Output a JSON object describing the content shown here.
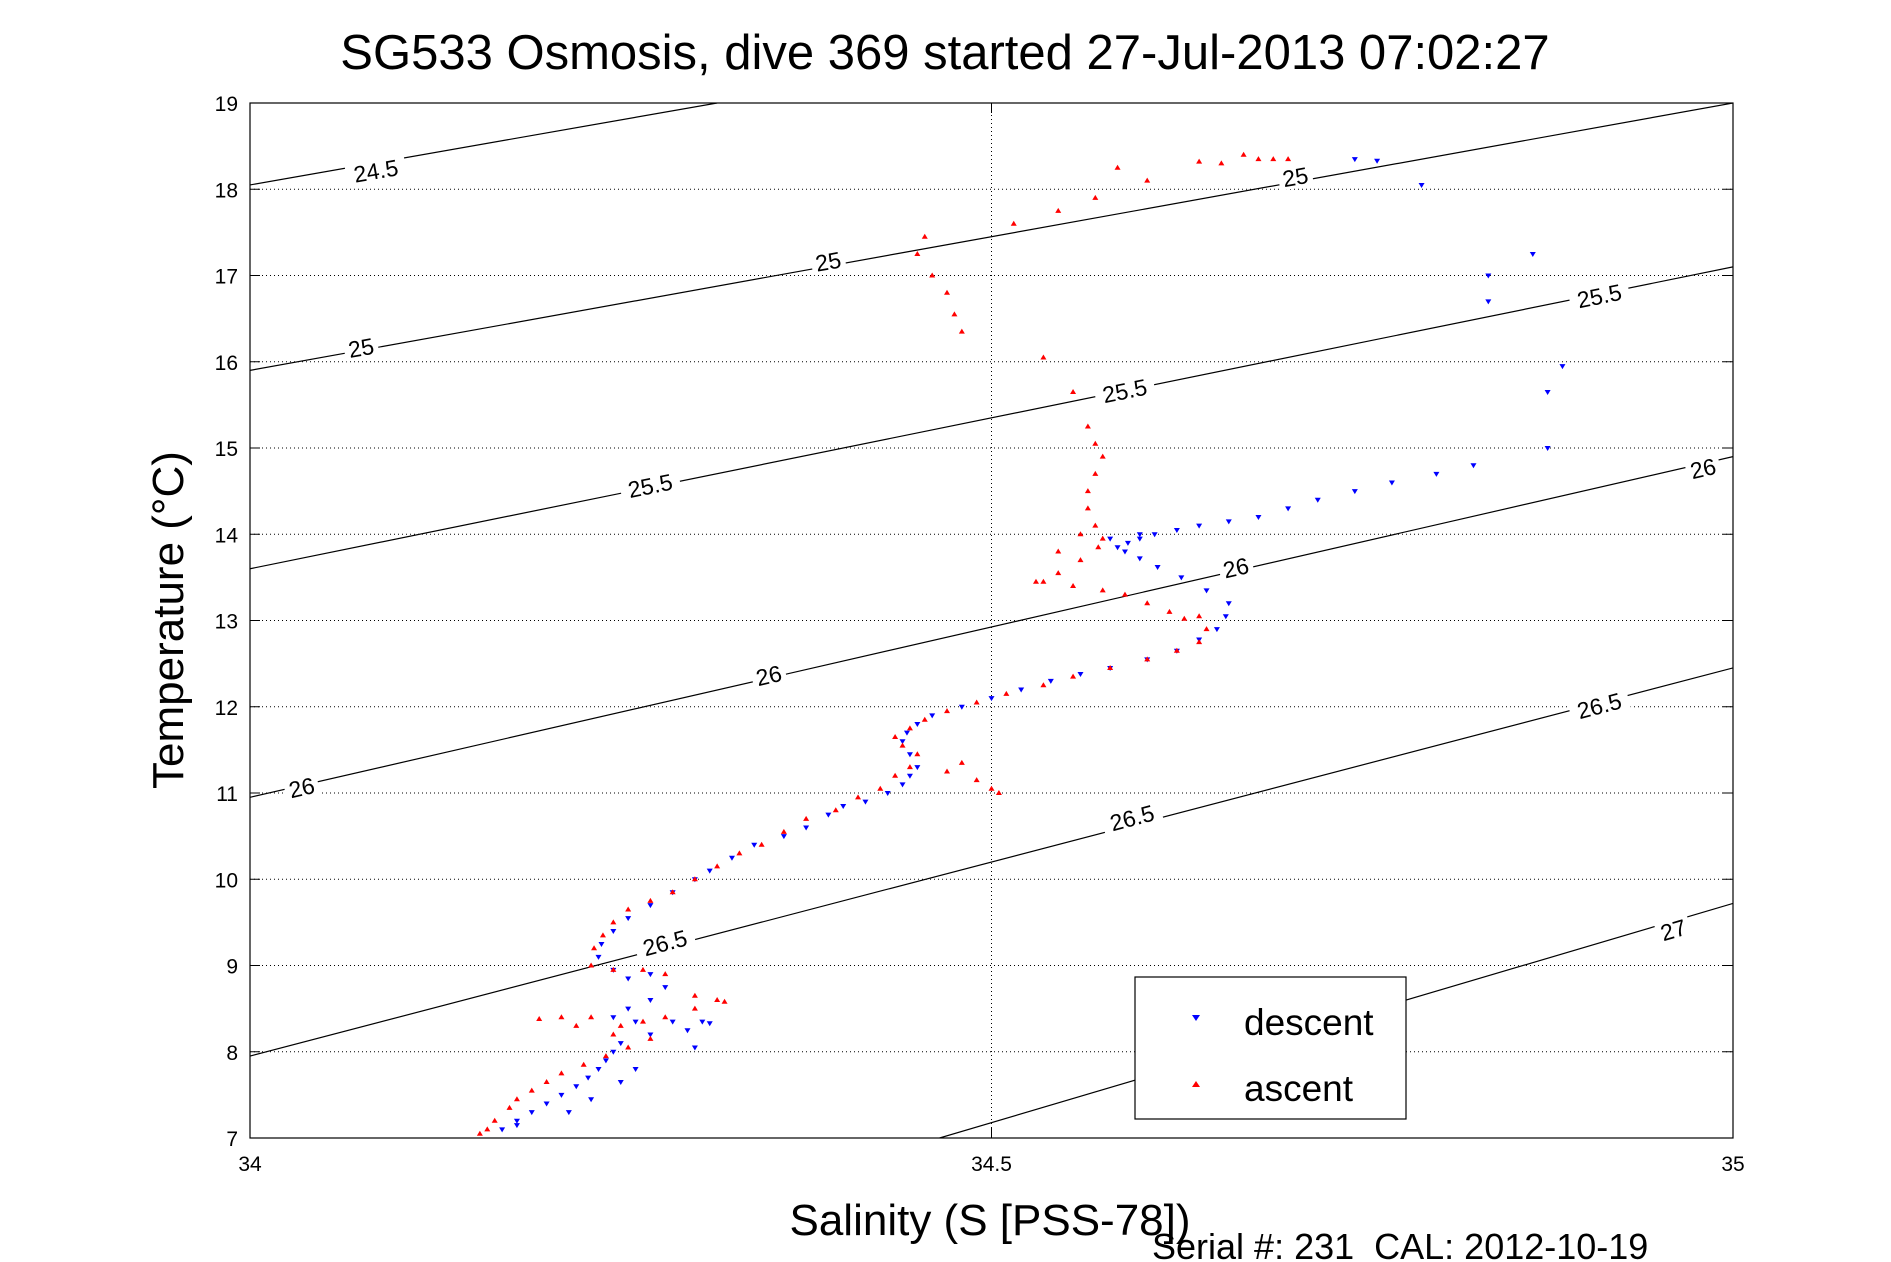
{
  "chart_data": {
    "type": "scatter",
    "title": "SG533 Osmosis, dive 369 started 27-Jul-2013 07:02:27",
    "xlabel": "Salinity (S [PSS-78])",
    "ylabel": "Temperature (°C)",
    "xlim": [
      34,
      35
    ],
    "ylim": [
      7,
      19
    ],
    "xticks": [
      34,
      34.5,
      35
    ],
    "yticks": [
      7,
      8,
      9,
      10,
      11,
      12,
      13,
      14,
      15,
      16,
      17,
      18,
      19
    ],
    "xtick_labels": [
      "34",
      "34.5",
      "35"
    ],
    "ytick_labels": [
      "7",
      "8",
      "9",
      "10",
      "11",
      "12",
      "13",
      "14",
      "15",
      "16",
      "17",
      "18",
      "19"
    ],
    "grid": "dotted at ticks",
    "legend_position": "bottom-right",
    "footer": "Serial #: 231  CAL: 2012-10-19",
    "density_contours": [
      {
        "level": "24.5",
        "points": [
          [
            34.0,
            18.05
          ],
          [
            34.315,
            19.0
          ]
        ],
        "labels": [
          {
            "text": "24.5",
            "at": [
              34.085,
              18.2
            ]
          }
        ]
      },
      {
        "level": "25",
        "points": [
          [
            34.0,
            15.9
          ],
          [
            35.0,
            19.0
          ]
        ],
        "labels": [
          {
            "text": "25",
            "at": [
              34.075,
              16.15
            ]
          },
          {
            "text": "25",
            "at": [
              34.39,
              17.15
            ]
          },
          {
            "text": "25",
            "at": [
              34.705,
              18.13
            ]
          }
        ]
      },
      {
        "level": "25.5",
        "points": [
          [
            34.0,
            13.6
          ],
          [
            35.0,
            17.1
          ]
        ],
        "labels": [
          {
            "text": "25.5",
            "at": [
              34.27,
              14.55
            ]
          },
          {
            "text": "25.5",
            "at": [
              34.59,
              15.65
            ]
          },
          {
            "text": "25.5",
            "at": [
              34.91,
              16.75
            ]
          }
        ]
      },
      {
        "level": "26",
        "points": [
          [
            34.0,
            10.95
          ],
          [
            35.0,
            14.9
          ]
        ],
        "labels": [
          {
            "text": "26",
            "at": [
              34.035,
              11.05
            ]
          },
          {
            "text": "26",
            "at": [
              34.35,
              12.35
            ]
          },
          {
            "text": "26",
            "at": [
              34.665,
              13.6
            ]
          },
          {
            "text": "26",
            "at": [
              34.98,
              14.75
            ]
          }
        ]
      },
      {
        "level": "26.5",
        "points": [
          [
            34.0,
            7.95
          ],
          [
            35.0,
            12.45
          ]
        ],
        "labels": [
          {
            "text": "26.5",
            "at": [
              34.28,
              9.25
            ]
          },
          {
            "text": "26.5",
            "at": [
              34.595,
              10.7
            ]
          },
          {
            "text": "26.5",
            "at": [
              34.91,
              12.0
            ]
          }
        ]
      },
      {
        "level": "27",
        "points": [
          [
            34.465,
            7.0
          ],
          [
            35.0,
            9.72
          ]
        ],
        "labels": [
          {
            "text": "27",
            "at": [
              34.96,
              9.4
            ]
          }
        ]
      }
    ],
    "series": [
      {
        "name": "descent",
        "color": "#0000ff",
        "marker": "triangle-down",
        "points": [
          [
            34.745,
            18.35
          ],
          [
            34.76,
            18.33
          ],
          [
            34.79,
            18.05
          ],
          [
            34.835,
            17.0
          ],
          [
            34.835,
            16.7
          ],
          [
            34.865,
            17.25
          ],
          [
            34.885,
            15.95
          ],
          [
            34.875,
            15.65
          ],
          [
            34.875,
            15.0
          ],
          [
            34.825,
            14.8
          ],
          [
            34.8,
            14.7
          ],
          [
            34.77,
            14.6
          ],
          [
            34.745,
            14.5
          ],
          [
            34.72,
            14.4
          ],
          [
            34.7,
            14.3
          ],
          [
            34.68,
            14.2
          ],
          [
            34.66,
            14.15
          ],
          [
            34.64,
            14.1
          ],
          [
            34.625,
            14.05
          ],
          [
            34.61,
            14.0
          ],
          [
            34.6,
            13.95
          ],
          [
            34.592,
            13.9
          ],
          [
            34.585,
            13.85
          ],
          [
            34.59,
            13.8
          ],
          [
            34.6,
            13.72
          ],
          [
            34.612,
            13.62
          ],
          [
            34.628,
            13.5
          ],
          [
            34.645,
            13.35
          ],
          [
            34.66,
            13.2
          ],
          [
            34.658,
            13.05
          ],
          [
            34.652,
            12.9
          ],
          [
            34.64,
            12.78
          ],
          [
            34.625,
            12.65
          ],
          [
            34.605,
            12.55
          ],
          [
            34.58,
            12.45
          ],
          [
            34.56,
            12.38
          ],
          [
            34.54,
            12.3
          ],
          [
            34.52,
            12.2
          ],
          [
            34.5,
            12.1
          ],
          [
            34.48,
            12.0
          ],
          [
            34.46,
            11.9
          ],
          [
            34.45,
            11.8
          ],
          [
            34.443,
            11.7
          ],
          [
            34.44,
            11.6
          ],
          [
            34.445,
            11.45
          ],
          [
            34.45,
            11.3
          ],
          [
            34.445,
            11.2
          ],
          [
            34.44,
            11.1
          ],
          [
            34.43,
            11.0
          ],
          [
            34.415,
            10.9
          ],
          [
            34.4,
            10.85
          ],
          [
            34.39,
            10.75
          ],
          [
            34.375,
            10.6
          ],
          [
            34.36,
            10.5
          ],
          [
            34.34,
            10.4
          ],
          [
            34.325,
            10.25
          ],
          [
            34.31,
            10.1
          ],
          [
            34.3,
            10.0
          ],
          [
            34.285,
            9.85
          ],
          [
            34.27,
            9.7
          ],
          [
            34.255,
            9.55
          ],
          [
            34.245,
            9.4
          ],
          [
            34.237,
            9.25
          ],
          [
            34.235,
            9.1
          ],
          [
            34.245,
            8.95
          ],
          [
            34.255,
            8.85
          ],
          [
            34.27,
            8.9
          ],
          [
            34.28,
            8.75
          ],
          [
            34.27,
            8.6
          ],
          [
            34.255,
            8.5
          ],
          [
            34.245,
            8.4
          ],
          [
            34.26,
            8.35
          ],
          [
            34.285,
            8.35
          ],
          [
            34.31,
            8.33
          ],
          [
            34.295,
            8.25
          ],
          [
            34.27,
            8.2
          ],
          [
            34.25,
            8.1
          ],
          [
            34.245,
            8.0
          ],
          [
            34.24,
            7.9
          ],
          [
            34.235,
            7.8
          ],
          [
            34.228,
            7.7
          ],
          [
            34.22,
            7.6
          ],
          [
            34.21,
            7.5
          ],
          [
            34.2,
            7.4
          ],
          [
            34.19,
            7.3
          ],
          [
            34.18,
            7.2
          ],
          [
            34.17,
            7.1
          ],
          [
            34.305,
            8.35
          ],
          [
            34.3,
            8.05
          ],
          [
            34.26,
            7.8
          ],
          [
            34.25,
            7.65
          ],
          [
            34.23,
            7.45
          ],
          [
            34.215,
            7.3
          ],
          [
            34.18,
            7.15
          ],
          [
            34.58,
            13.95
          ],
          [
            34.6,
            14.0
          ]
        ]
      },
      {
        "name": "ascent",
        "color": "#ff0000",
        "marker": "triangle-up",
        "points": [
          [
            34.7,
            18.35
          ],
          [
            34.69,
            18.35
          ],
          [
            34.68,
            18.35
          ],
          [
            34.67,
            18.4
          ],
          [
            34.655,
            18.3
          ],
          [
            34.64,
            18.32
          ],
          [
            34.605,
            18.1
          ],
          [
            34.585,
            18.25
          ],
          [
            34.57,
            17.9
          ],
          [
            34.545,
            17.75
          ],
          [
            34.515,
            17.6
          ],
          [
            34.455,
            17.45
          ],
          [
            34.45,
            17.25
          ],
          [
            34.46,
            17.0
          ],
          [
            34.47,
            16.8
          ],
          [
            34.475,
            16.55
          ],
          [
            34.48,
            16.35
          ],
          [
            34.535,
            16.05
          ],
          [
            34.555,
            15.65
          ],
          [
            34.565,
            15.25
          ],
          [
            34.57,
            15.05
          ],
          [
            34.575,
            14.9
          ],
          [
            34.57,
            14.7
          ],
          [
            34.565,
            14.5
          ],
          [
            34.565,
            14.3
          ],
          [
            34.57,
            14.1
          ],
          [
            34.575,
            13.95
          ],
          [
            34.572,
            13.85
          ],
          [
            34.56,
            13.7
          ],
          [
            34.545,
            13.55
          ],
          [
            34.535,
            13.45
          ],
          [
            34.555,
            13.4
          ],
          [
            34.575,
            13.35
          ],
          [
            34.59,
            13.3
          ],
          [
            34.605,
            13.2
          ],
          [
            34.62,
            13.1
          ],
          [
            34.64,
            13.05
          ],
          [
            34.645,
            12.9
          ],
          [
            34.64,
            12.75
          ],
          [
            34.625,
            12.65
          ],
          [
            34.605,
            12.55
          ],
          [
            34.58,
            12.45
          ],
          [
            34.555,
            12.35
          ],
          [
            34.535,
            12.25
          ],
          [
            34.51,
            12.15
          ],
          [
            34.49,
            12.05
          ],
          [
            34.47,
            11.95
          ],
          [
            34.455,
            11.85
          ],
          [
            34.445,
            11.75
          ],
          [
            34.435,
            11.65
          ],
          [
            34.44,
            11.55
          ],
          [
            34.45,
            11.45
          ],
          [
            34.445,
            11.3
          ],
          [
            34.435,
            11.2
          ],
          [
            34.425,
            11.05
          ],
          [
            34.41,
            10.95
          ],
          [
            34.395,
            10.8
          ],
          [
            34.375,
            10.7
          ],
          [
            34.36,
            10.55
          ],
          [
            34.345,
            10.4
          ],
          [
            34.33,
            10.3
          ],
          [
            34.315,
            10.15
          ],
          [
            34.3,
            10.0
          ],
          [
            34.285,
            9.85
          ],
          [
            34.27,
            9.75
          ],
          [
            34.255,
            9.65
          ],
          [
            34.245,
            9.5
          ],
          [
            34.238,
            9.35
          ],
          [
            34.232,
            9.2
          ],
          [
            34.23,
            9.0
          ],
          [
            34.245,
            8.95
          ],
          [
            34.265,
            8.95
          ],
          [
            34.28,
            8.9
          ],
          [
            34.3,
            8.65
          ],
          [
            34.315,
            8.6
          ],
          [
            34.32,
            8.58
          ],
          [
            34.3,
            8.5
          ],
          [
            34.28,
            8.4
          ],
          [
            34.265,
            8.35
          ],
          [
            34.25,
            8.3
          ],
          [
            34.23,
            8.4
          ],
          [
            34.21,
            8.4
          ],
          [
            34.195,
            8.38
          ],
          [
            34.22,
            8.3
          ],
          [
            34.245,
            8.2
          ],
          [
            34.27,
            8.15
          ],
          [
            34.255,
            8.05
          ],
          [
            34.24,
            7.95
          ],
          [
            34.225,
            7.85
          ],
          [
            34.21,
            7.75
          ],
          [
            34.2,
            7.65
          ],
          [
            34.19,
            7.55
          ],
          [
            34.18,
            7.45
          ],
          [
            34.175,
            7.35
          ],
          [
            34.165,
            7.2
          ],
          [
            34.16,
            7.1
          ],
          [
            34.155,
            7.05
          ],
          [
            34.48,
            11.35
          ],
          [
            34.47,
            11.25
          ],
          [
            34.49,
            11.15
          ],
          [
            34.5,
            11.05
          ],
          [
            34.505,
            11.0
          ],
          [
            34.53,
            13.45
          ],
          [
            34.56,
            14.0
          ],
          [
            34.545,
            13.8
          ],
          [
            34.63,
            13.02
          ]
        ]
      }
    ]
  }
}
